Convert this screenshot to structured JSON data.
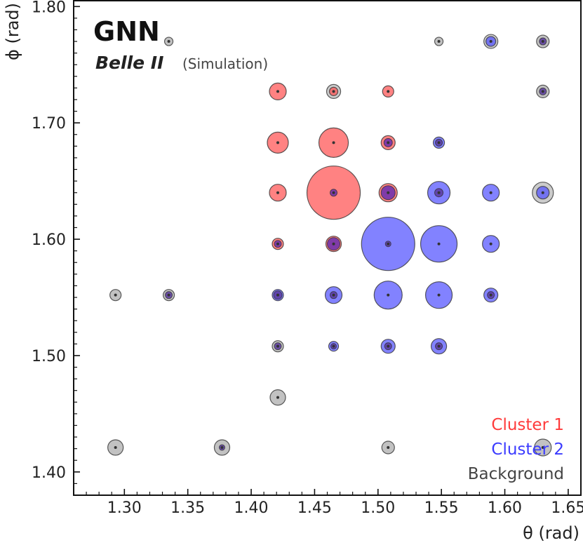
{
  "chart_data": {
    "type": "scatter",
    "title": "GNN",
    "experiment": "Belle II",
    "experiment_note": "(Simulation)",
    "xlabel": "θ (rad)",
    "ylabel": "ϕ (rad)",
    "xlim": [
      1.26,
      1.66
    ],
    "ylim": [
      1.38,
      1.805
    ],
    "xticks": [
      1.3,
      1.35,
      1.4,
      1.45,
      1.5,
      1.55,
      1.6,
      1.65
    ],
    "xtick_labels": [
      "1.30",
      "1.35",
      "1.40",
      "1.45",
      "1.50",
      "1.55",
      "1.60",
      "1.65"
    ],
    "yticks": [
      1.4,
      1.5,
      1.6,
      1.7,
      1.8
    ],
    "ytick_labels": [
      "1.40",
      "1.50",
      "1.60",
      "1.70",
      "1.80"
    ],
    "legend": [
      "Cluster 1",
      "Cluster 2",
      "Background"
    ],
    "legend_position": "bottom-right",
    "colors": {
      "Cluster 1": "#ff4d4d",
      "Cluster 2": "#4d4dff",
      "Background": "#a8a8a8",
      "legend_cluster1": "#ff3b3b",
      "legend_cluster2": "#3b3bff",
      "legend_background": "#444444"
    },
    "points": [
      {
        "x": 1.335,
        "y": 1.77,
        "size": 6,
        "class": "Background"
      },
      {
        "x": 1.548,
        "y": 1.77,
        "size": 6,
        "class": "Background"
      },
      {
        "x": 1.589,
        "y": 1.77,
        "size": 7,
        "class": "Cluster 2",
        "bg": 3
      },
      {
        "x": 1.63,
        "y": 1.77,
        "size": 9,
        "class": "Background",
        "mix": 5
      },
      {
        "x": 1.421,
        "y": 1.727,
        "size": 12,
        "class": "Cluster 1"
      },
      {
        "x": 1.465,
        "y": 1.727,
        "size": 6,
        "class": "Cluster 1",
        "bg": 4
      },
      {
        "x": 1.508,
        "y": 1.727,
        "size": 8,
        "class": "Cluster 1"
      },
      {
        "x": 1.63,
        "y": 1.727,
        "size": 9,
        "class": "Background",
        "mix": 5
      },
      {
        "x": 1.421,
        "y": 1.683,
        "size": 15,
        "class": "Cluster 1"
      },
      {
        "x": 1.465,
        "y": 1.683,
        "size": 21,
        "class": "Cluster 1"
      },
      {
        "x": 1.508,
        "y": 1.683,
        "size": 10,
        "class": "Cluster 1",
        "mix": 6
      },
      {
        "x": 1.548,
        "y": 1.683,
        "size": 8,
        "class": "Cluster 2",
        "mix": 5
      },
      {
        "x": 1.421,
        "y": 1.64,
        "size": 12,
        "class": "Cluster 1"
      },
      {
        "x": 1.465,
        "y": 1.64,
        "size": 38,
        "class": "Cluster 1",
        "mix": 5
      },
      {
        "x": 1.508,
        "y": 1.64,
        "size": 13,
        "class": "Cluster 1",
        "mix": 10
      },
      {
        "x": 1.548,
        "y": 1.64,
        "size": 16,
        "class": "Cluster 2",
        "mix": 6
      },
      {
        "x": 1.589,
        "y": 1.64,
        "size": 12,
        "class": "Cluster 2"
      },
      {
        "x": 1.63,
        "y": 1.64,
        "size": 9,
        "class": "Cluster 2",
        "bg": 6
      },
      {
        "x": 1.421,
        "y": 1.596,
        "size": 8,
        "class": "Cluster 1",
        "mix": 5
      },
      {
        "x": 1.465,
        "y": 1.596,
        "size": 11,
        "class": "Cluster 1",
        "mix": 9
      },
      {
        "x": 1.508,
        "y": 1.596,
        "size": 38,
        "class": "Cluster 2",
        "mix": 4
      },
      {
        "x": 1.548,
        "y": 1.596,
        "size": 26,
        "class": "Cluster 2"
      },
      {
        "x": 1.589,
        "y": 1.596,
        "size": 12,
        "class": "Cluster 2"
      },
      {
        "x": 1.293,
        "y": 1.552,
        "size": 8,
        "class": "Background"
      },
      {
        "x": 1.335,
        "y": 1.552,
        "size": 8,
        "class": "Background",
        "mix": 5
      },
      {
        "x": 1.421,
        "y": 1.552,
        "size": 8,
        "class": "Cluster 2",
        "mix": 6
      },
      {
        "x": 1.465,
        "y": 1.552,
        "size": 12,
        "class": "Cluster 2",
        "mix": 5
      },
      {
        "x": 1.508,
        "y": 1.552,
        "size": 20,
        "class": "Cluster 2"
      },
      {
        "x": 1.548,
        "y": 1.552,
        "size": 19,
        "class": "Cluster 2"
      },
      {
        "x": 1.589,
        "y": 1.552,
        "size": 10,
        "class": "Cluster 2",
        "mix": 5
      },
      {
        "x": 1.421,
        "y": 1.508,
        "size": 8,
        "class": "Background",
        "mix": 5
      },
      {
        "x": 1.465,
        "y": 1.508,
        "size": 7,
        "class": "Cluster 2",
        "mix": 4
      },
      {
        "x": 1.508,
        "y": 1.508,
        "size": 10,
        "class": "Cluster 2",
        "mix": 5
      },
      {
        "x": 1.548,
        "y": 1.508,
        "size": 11,
        "class": "Cluster 2",
        "mix": 5
      },
      {
        "x": 1.421,
        "y": 1.464,
        "size": 11,
        "class": "Background"
      },
      {
        "x": 1.293,
        "y": 1.421,
        "size": 11,
        "class": "Background"
      },
      {
        "x": 1.377,
        "y": 1.421,
        "size": 11,
        "class": "Background",
        "mix": 4
      },
      {
        "x": 1.508,
        "y": 1.421,
        "size": 9,
        "class": "Background"
      },
      {
        "x": 1.63,
        "y": 1.421,
        "size": 12,
        "class": "Background"
      }
    ]
  }
}
